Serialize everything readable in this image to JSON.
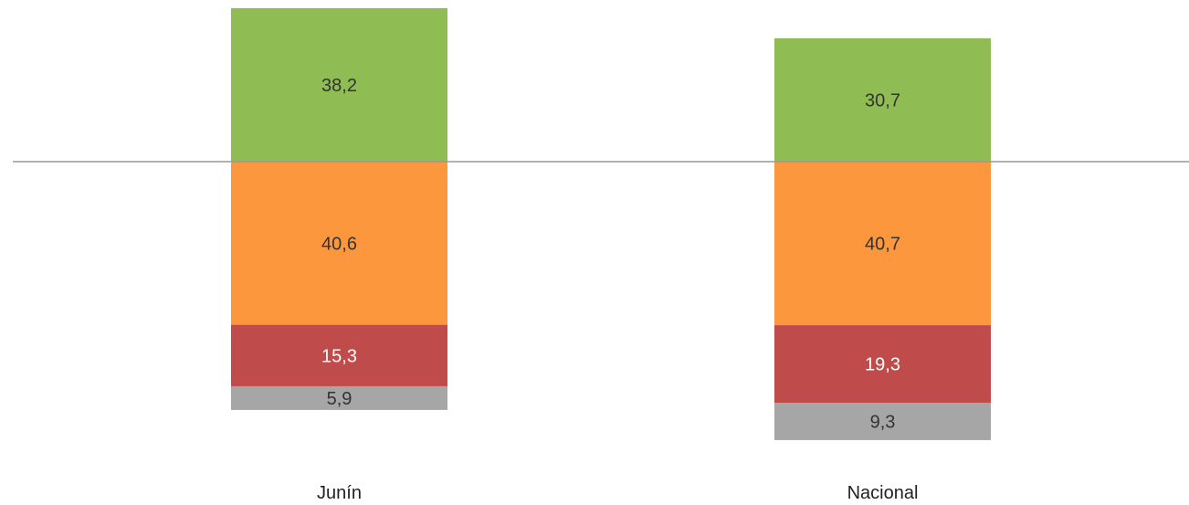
{
  "chart_data": {
    "type": "bar",
    "stacked": "diverging",
    "categories": [
      "Junín",
      "Nacional"
    ],
    "series": [
      {
        "values": [
          38.2,
          30.7
        ],
        "labels": [
          "38,2",
          "30,7"
        ],
        "color": "#8fbd53",
        "label_color": "#333333",
        "direction": "up"
      },
      {
        "values": [
          40.6,
          40.7
        ],
        "labels": [
          "40,6",
          "40,7"
        ],
        "color": "#fd973e",
        "label_color": "#333333",
        "direction": "down"
      },
      {
        "values": [
          15.3,
          19.3
        ],
        "labels": [
          "15,3",
          "19,3"
        ],
        "color": "#c04b4b",
        "label_color": "#ffffff",
        "direction": "down"
      },
      {
        "values": [
          5.9,
          9.3
        ],
        "labels": [
          "5,9",
          "9,3"
        ],
        "color": "#a6a6a6",
        "label_color": "#333333",
        "direction": "down"
      }
    ],
    "baseline_color": "#999999",
    "grid": false,
    "legend": "none"
  }
}
